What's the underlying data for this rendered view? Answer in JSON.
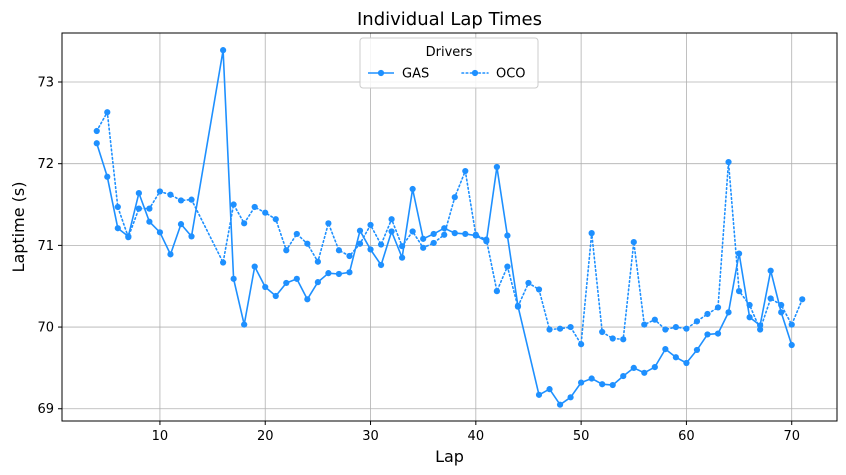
{
  "chart_data": {
    "type": "line",
    "title": "Individual Lap Times",
    "xlabel": "Lap",
    "ylabel": "Laptime (s)",
    "xlim": [
      0.7,
      74.3
    ],
    "ylim": [
      68.85,
      73.6
    ],
    "xticks": [
      10,
      20,
      30,
      40,
      50,
      60,
      70
    ],
    "yticks": [
      69,
      70,
      71,
      72,
      73
    ],
    "grid": true,
    "legend": {
      "title": "Drivers",
      "position": "top-center",
      "columns": 2
    },
    "series": [
      {
        "name": "GAS",
        "color": "#1e90ff",
        "linestyle": "solid",
        "x": [
          4,
          5,
          6,
          7,
          8,
          9,
          10,
          11,
          12,
          13,
          16,
          17,
          18,
          19,
          20,
          21,
          22,
          23,
          24,
          25,
          26,
          27,
          28,
          29,
          30,
          31,
          32,
          33,
          34,
          35,
          36,
          37,
          38,
          39,
          40,
          41,
          42,
          43,
          44,
          46,
          47,
          48,
          49,
          50,
          51,
          52,
          53,
          54,
          55,
          56,
          57,
          58,
          59,
          60,
          61,
          62,
          63,
          64,
          65,
          66,
          67,
          68,
          69,
          70
        ],
        "y": [
          72.25,
          71.84,
          71.21,
          71.11,
          71.64,
          71.29,
          71.16,
          70.89,
          71.26,
          71.11,
          73.39,
          70.59,
          70.03,
          70.74,
          70.49,
          70.38,
          70.54,
          70.59,
          70.34,
          70.55,
          70.66,
          70.65,
          70.67,
          71.18,
          70.95,
          70.76,
          71.17,
          70.85,
          71.69,
          71.08,
          71.14,
          71.21,
          71.15,
          71.14,
          71.12,
          71.05,
          71.96,
          71.12,
          70.26,
          69.17,
          69.24,
          69.05,
          69.14,
          69.32,
          69.37,
          69.3,
          69.29,
          69.4,
          69.5,
          69.44,
          69.51,
          69.73,
          69.63,
          69.56,
          69.72,
          69.91,
          69.92,
          70.18,
          70.9,
          70.12,
          70.02,
          70.69,
          70.18,
          69.78
        ]
      },
      {
        "name": "OCO",
        "color": "#1e90ff",
        "linestyle": "dotted",
        "x": [
          4,
          5,
          6,
          7,
          8,
          9,
          10,
          11,
          12,
          13,
          16,
          17,
          18,
          19,
          20,
          21,
          22,
          23,
          24,
          25,
          26,
          27,
          28,
          29,
          30,
          31,
          32,
          33,
          34,
          35,
          36,
          37,
          38,
          39,
          40,
          41,
          42,
          43,
          44,
          45,
          46,
          47,
          48,
          49,
          50,
          51,
          52,
          53,
          54,
          55,
          56,
          57,
          58,
          59,
          60,
          61,
          62,
          63,
          64,
          65,
          66,
          67,
          68,
          69,
          70,
          71
        ],
        "y": [
          72.4,
          72.63,
          71.47,
          71.1,
          71.45,
          71.45,
          71.66,
          71.62,
          71.55,
          71.56,
          70.79,
          71.5,
          71.27,
          71.47,
          71.4,
          71.32,
          70.94,
          71.14,
          71.02,
          70.8,
          71.27,
          70.94,
          70.87,
          71.02,
          71.25,
          71.01,
          71.32,
          70.99,
          71.17,
          70.97,
          71.03,
          71.13,
          71.59,
          71.91,
          71.13,
          71.07,
          70.44,
          70.74,
          70.25,
          70.54,
          70.46,
          69.97,
          69.98,
          70.0,
          69.79,
          71.15,
          69.94,
          69.86,
          69.85,
          71.04,
          70.03,
          70.09,
          69.97,
          70.0,
          69.98,
          70.07,
          70.16,
          70.24,
          72.02,
          70.44,
          70.27,
          69.97,
          70.35,
          70.27,
          70.03,
          70.34
        ]
      }
    ]
  }
}
